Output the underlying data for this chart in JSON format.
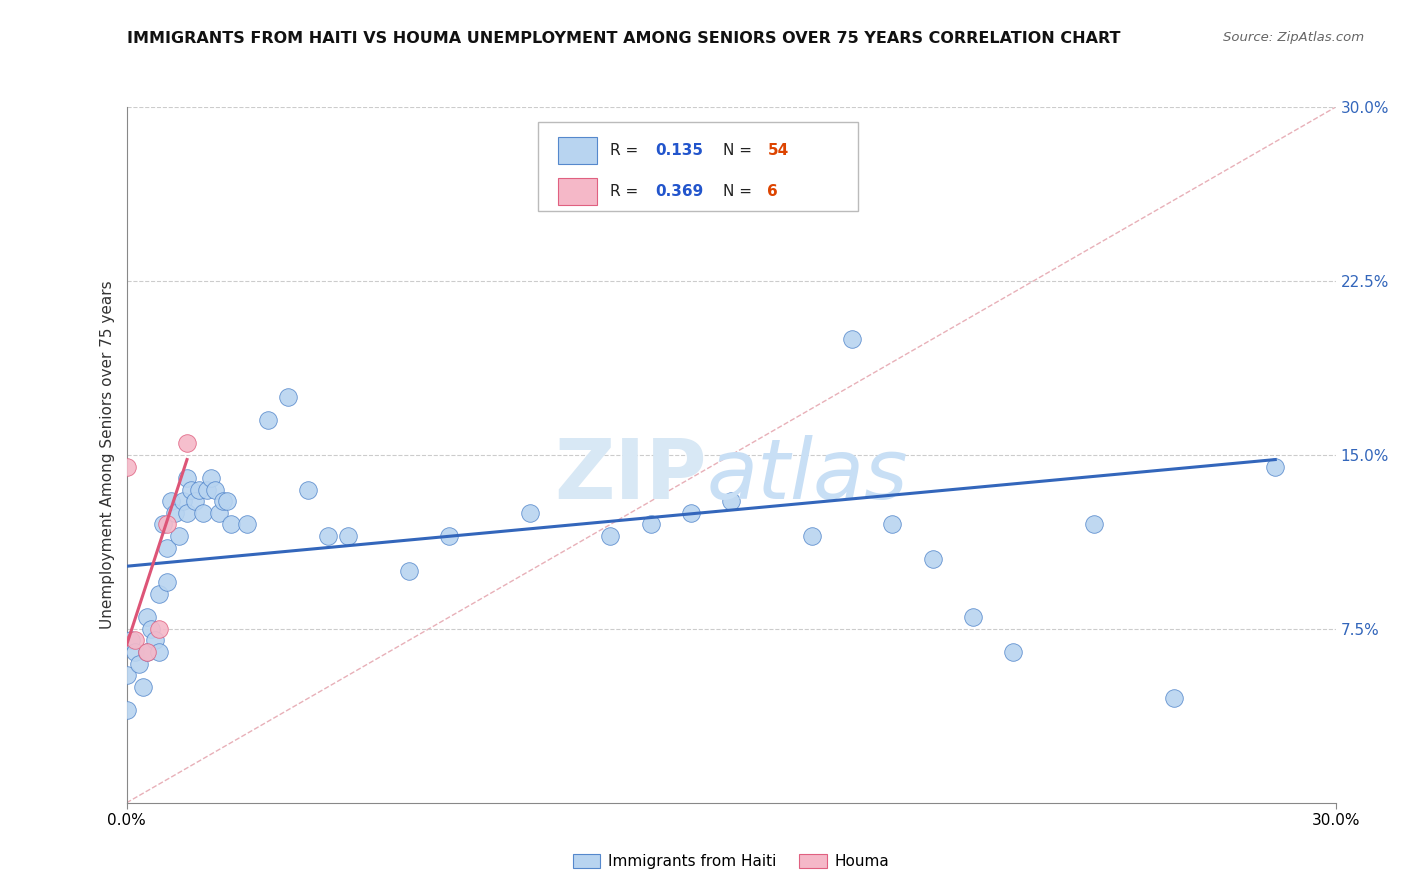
{
  "title": "IMMIGRANTS FROM HAITI VS HOUMA UNEMPLOYMENT AMONG SENIORS OVER 75 YEARS CORRELATION CHART",
  "source": "Source: ZipAtlas.com",
  "ylabel": "Unemployment Among Seniors over 75 years",
  "xlim": [
    0,
    0.3
  ],
  "ylim": [
    0,
    0.3
  ],
  "ytick_vals": [
    0.075,
    0.15,
    0.225,
    0.3
  ],
  "ytick_labels": [
    "7.5%",
    "15.0%",
    "22.5%",
    "30.0%"
  ],
  "blue_R": 0.135,
  "blue_N": 54,
  "pink_R": 0.369,
  "pink_N": 6,
  "blue_color": "#b8d4f0",
  "pink_color": "#f5b8c8",
  "blue_edge_color": "#5588cc",
  "pink_edge_color": "#e06080",
  "blue_line_color": "#3366bb",
  "pink_line_color": "#dd5577",
  "diag_line_color": "#e8b0b8",
  "grid_line_color": "#cccccc",
  "watermark_zip_color": "#d8e8f5",
  "watermark_atlas_color": "#c8dff5",
  "legend_R_color": "#2255cc",
  "legend_N_color": "#dd4400",
  "blue_scatter_x": [
    0.0,
    0.0,
    0.001,
    0.002,
    0.003,
    0.004,
    0.005,
    0.005,
    0.006,
    0.007,
    0.008,
    0.008,
    0.009,
    0.01,
    0.01,
    0.011,
    0.012,
    0.013,
    0.014,
    0.015,
    0.015,
    0.016,
    0.017,
    0.018,
    0.019,
    0.02,
    0.021,
    0.022,
    0.023,
    0.024,
    0.025,
    0.026,
    0.03,
    0.035,
    0.04,
    0.045,
    0.05,
    0.055,
    0.07,
    0.08,
    0.1,
    0.12,
    0.13,
    0.14,
    0.15,
    0.17,
    0.18,
    0.19,
    0.2,
    0.21,
    0.22,
    0.24,
    0.26,
    0.285
  ],
  "blue_scatter_y": [
    0.055,
    0.04,
    0.07,
    0.065,
    0.06,
    0.05,
    0.08,
    0.065,
    0.075,
    0.07,
    0.09,
    0.065,
    0.12,
    0.11,
    0.095,
    0.13,
    0.125,
    0.115,
    0.13,
    0.14,
    0.125,
    0.135,
    0.13,
    0.135,
    0.125,
    0.135,
    0.14,
    0.135,
    0.125,
    0.13,
    0.13,
    0.12,
    0.12,
    0.165,
    0.175,
    0.135,
    0.115,
    0.115,
    0.1,
    0.115,
    0.125,
    0.115,
    0.12,
    0.125,
    0.13,
    0.115,
    0.2,
    0.12,
    0.105,
    0.08,
    0.065,
    0.12,
    0.045,
    0.145
  ],
  "pink_scatter_x": [
    0.0,
    0.002,
    0.005,
    0.008,
    0.01,
    0.015
  ],
  "pink_scatter_y": [
    0.145,
    0.07,
    0.065,
    0.075,
    0.12,
    0.155
  ],
  "blue_line_x0": 0.0,
  "blue_line_y0": 0.102,
  "blue_line_x1": 0.285,
  "blue_line_y1": 0.148,
  "pink_line_x0": 0.0,
  "pink_line_y0": 0.068,
  "pink_line_x1": 0.015,
  "pink_line_y1": 0.148,
  "diag_line_x0": 0.0,
  "diag_line_y0": 0.0,
  "diag_line_x1": 0.3,
  "diag_line_y1": 0.3
}
